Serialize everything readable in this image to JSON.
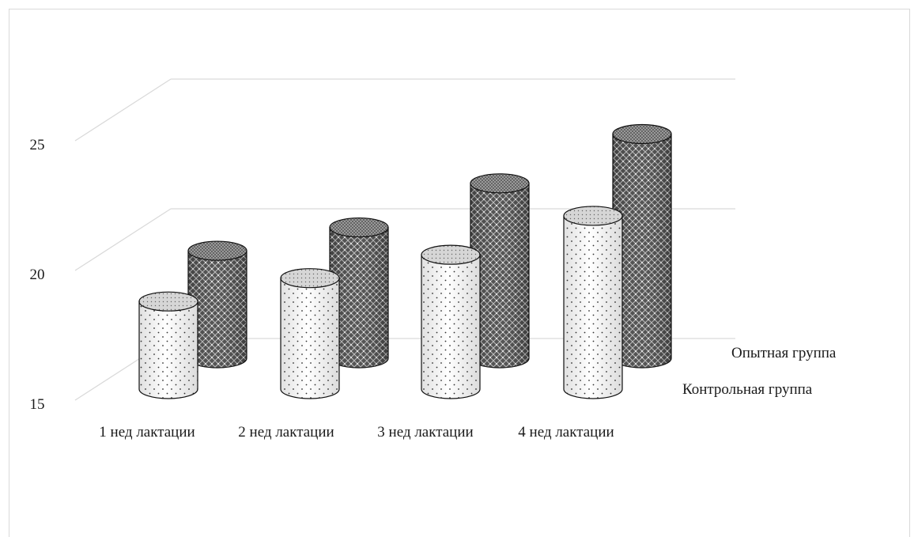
{
  "chart_data": {
    "type": "bar",
    "style": "3d-cylinder",
    "categories": [
      "1 нед лактации",
      "2 нед лактации",
      "3 нед лактации",
      "4 нед лактации"
    ],
    "series": [
      {
        "name": "Контрольная группа",
        "values": [
          18.5,
          19.4,
          20.3,
          21.8
        ]
      },
      {
        "name": "Опытная группа",
        "values": [
          18.9,
          19.8,
          21.5,
          23.4
        ]
      }
    ],
    "yticks": [
      15,
      20,
      25
    ],
    "ylim": [
      15,
      27
    ],
    "grid": true,
    "legend": "series labels on depth axis (right)"
  }
}
